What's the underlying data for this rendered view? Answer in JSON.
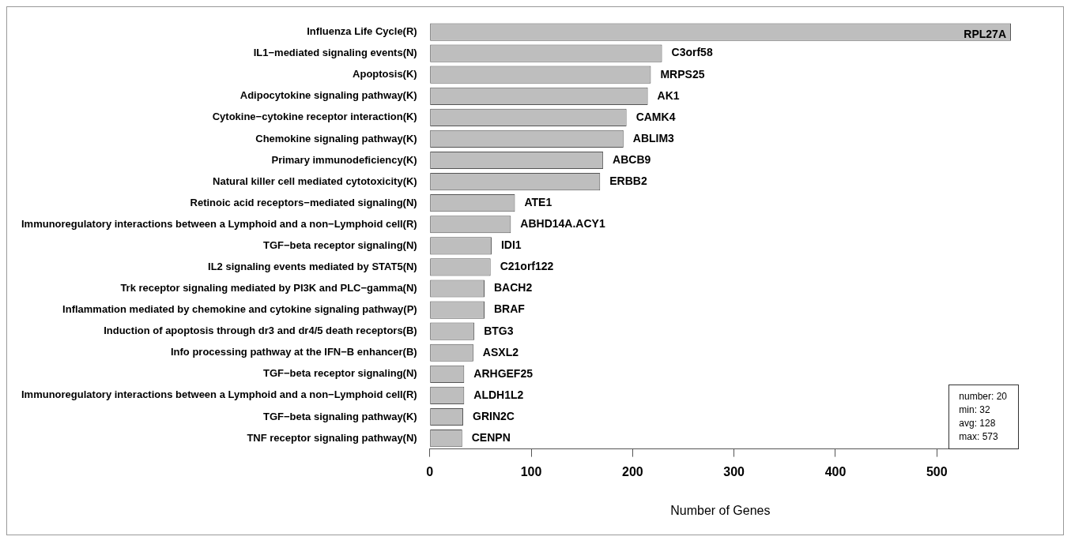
{
  "chart_data": {
    "type": "bar",
    "orientation": "horizontal",
    "xlabel": "Number of Genes",
    "categories": [
      "Influenza Life Cycle(R)",
      "IL1−mediated signaling events(N)",
      "Apoptosis(K)",
      "Adipocytokine signaling pathway(K)",
      "Cytokine−cytokine receptor interaction(K)",
      "Chemokine signaling pathway(K)",
      "Primary immunodeficiency(K)",
      "Natural killer cell mediated cytotoxicity(K)",
      "Retinoic acid receptors−mediated signaling(N)",
      "Immunoregulatory interactions between a Lymphoid and a non−Lymphoid cell(R)",
      "TGF−beta receptor signaling(N)",
      "IL2 signaling events mediated by STAT5(N)",
      "Trk receptor signaling mediated by PI3K and PLC−gamma(N)",
      "Inflammation mediated by chemokine and cytokine signaling pathway(P)",
      "Induction of apoptosis through dr3 and dr4/5 death receptors(B)",
      "Info processing pathway at the IFN−B enhancer(B)",
      "TGF−beta receptor signaling(N)",
      "Immunoregulatory interactions between a Lymphoid and a non−Lymphoid cell(R)",
      "TGF−beta signaling pathway(K)",
      "TNF receptor signaling pathway(N)"
    ],
    "values": [
      573,
      229,
      218,
      215,
      194,
      191,
      171,
      168,
      84,
      80,
      61,
      60,
      54,
      54,
      44,
      43,
      34,
      34,
      33,
      32
    ],
    "value_labels": [
      "RPL27A",
      "C3orf58",
      "MRPS25",
      "AK1",
      "CAMK4",
      "ABLIM3",
      "ABCB9",
      "ERBB2",
      "ATE1",
      "ABHD14A.ACY1",
      "IDI1",
      "C21orf122",
      "BACH2",
      "BRAF",
      "BTG3",
      "ASXL2",
      "ARHGEF25",
      "ALDH1L2",
      "GRIN2C",
      "CENPN"
    ],
    "color": "#bebebe",
    "xlim": [
      0,
      573
    ],
    "xticks": [
      0,
      100,
      200,
      300,
      400,
      500
    ],
    "annotations": [
      "number: 20",
      "min: 32",
      "avg: 128",
      "max: 573"
    ],
    "grid": false,
    "legend": false
  }
}
